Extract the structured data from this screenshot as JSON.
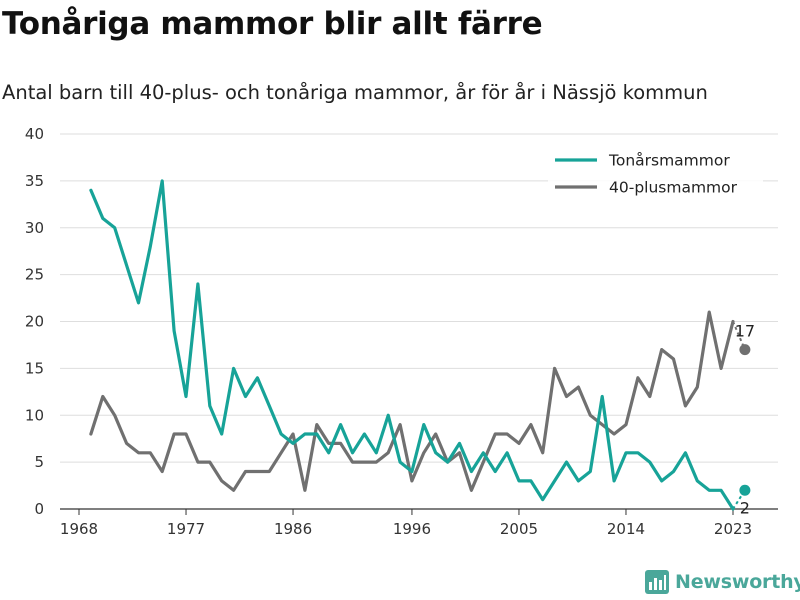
{
  "title": "Tonåriga mammor blir allt färre",
  "subtitle": "Antal barn till 40-plus- och tonåriga mammor, år för år i Nässjö kommun",
  "brand": {
    "name": "Newsworthy",
    "icon": "bar-chart-logo-icon",
    "color": "#4aa79a"
  },
  "chart_data": {
    "type": "line",
    "title": "Tonåriga mammor blir allt färre",
    "subtitle": "Antal barn till 40-plus- och tonåriga mammor, år för år i Nässjö kommun",
    "xlabel": "",
    "ylabel": "",
    "ylim": [
      0,
      40
    ],
    "yticks": [
      0,
      5,
      10,
      15,
      20,
      25,
      30,
      35,
      40
    ],
    "xticks": [
      1968,
      1977,
      1986,
      1996,
      2005,
      2014,
      2023
    ],
    "xlim": [
      1968,
      2024
    ],
    "grid": true,
    "legend": "top-right",
    "x": [
      1969,
      1970,
      1971,
      1972,
      1973,
      1974,
      1975,
      1976,
      1977,
      1978,
      1979,
      1980,
      1981,
      1982,
      1983,
      1984,
      1985,
      1986,
      1987,
      1988,
      1989,
      1990,
      1991,
      1992,
      1993,
      1994,
      1995,
      1996,
      1997,
      1998,
      1999,
      2000,
      2001,
      2002,
      2003,
      2004,
      2005,
      2006,
      2007,
      2008,
      2009,
      2010,
      2011,
      2012,
      2013,
      2014,
      2015,
      2016,
      2017,
      2018,
      2019,
      2020,
      2021,
      2022,
      2023,
      2024
    ],
    "series": [
      {
        "name": "Tonårsmammor",
        "color": "#17a398",
        "values": [
          34,
          31,
          30,
          26,
          22,
          28,
          35,
          19,
          12,
          24,
          11,
          8,
          15,
          12,
          14,
          11,
          8,
          7,
          8,
          8,
          6,
          9,
          6,
          8,
          6,
          10,
          5,
          4,
          9,
          6,
          5,
          7,
          4,
          6,
          4,
          6,
          3,
          3,
          1,
          3,
          5,
          3,
          4,
          12,
          3,
          6,
          6,
          5,
          3,
          4,
          6,
          3,
          2,
          2,
          0,
          2
        ],
        "end_label": "2"
      },
      {
        "name": "40-plusmammor",
        "color": "#707070",
        "values": [
          8,
          12,
          10,
          7,
          6,
          6,
          4,
          8,
          8,
          5,
          5,
          3,
          2,
          4,
          4,
          4,
          6,
          8,
          2,
          9,
          7,
          7,
          5,
          5,
          5,
          6,
          9,
          3,
          6,
          8,
          5,
          6,
          2,
          5,
          8,
          8,
          7,
          9,
          6,
          15,
          12,
          13,
          10,
          9,
          8,
          9,
          14,
          12,
          17,
          16,
          11,
          13,
          21,
          15,
          20,
          17
        ],
        "end_label": "17"
      }
    ]
  }
}
